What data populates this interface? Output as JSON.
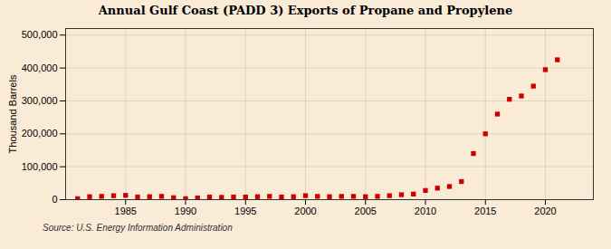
{
  "chart_data": {
    "type": "scatter",
    "title": "Annual Gulf Coast (PADD 3) Exports of Propane and Propylene",
    "ylabel": "Thousand Barrels",
    "source": "Source: U.S. Energy Information Administration",
    "x": [
      1981,
      1982,
      1983,
      1984,
      1985,
      1986,
      1987,
      1988,
      1989,
      1990,
      1991,
      1992,
      1993,
      1994,
      1995,
      1996,
      1997,
      1998,
      1999,
      2000,
      2001,
      2002,
      2003,
      2004,
      2005,
      2006,
      2007,
      2008,
      2009,
      2010,
      2011,
      2012,
      2013,
      2014,
      2015,
      2016,
      2017,
      2018,
      2019,
      2020,
      2021
    ],
    "values": [
      3000,
      9000,
      10000,
      12000,
      13000,
      8000,
      9000,
      10000,
      6000,
      3000,
      5000,
      8000,
      7000,
      8000,
      8000,
      9000,
      10000,
      8000,
      9000,
      12000,
      10000,
      9000,
      10000,
      10000,
      9000,
      10000,
      12000,
      15000,
      17000,
      28000,
      35000,
      40000,
      55000,
      140000,
      200000,
      260000,
      305000,
      315000,
      345000,
      395000,
      425000
    ],
    "color": "#cc0000",
    "marker": "square",
    "xlim": [
      1980,
      2024
    ],
    "xticks": [
      1985,
      1990,
      1995,
      2000,
      2005,
      2010,
      2015,
      2020
    ],
    "ylim": [
      0,
      520000
    ],
    "yticks": [
      0,
      {
        "value": 100000,
        "label": "100,000"
      },
      {
        "value": 200000,
        "label": "200,000"
      },
      {
        "value": 300000,
        "label": "300,000"
      },
      {
        "value": 400000,
        "label": "400,000"
      },
      {
        "value": 500000,
        "label": "500,000"
      }
    ],
    "grid": true
  }
}
